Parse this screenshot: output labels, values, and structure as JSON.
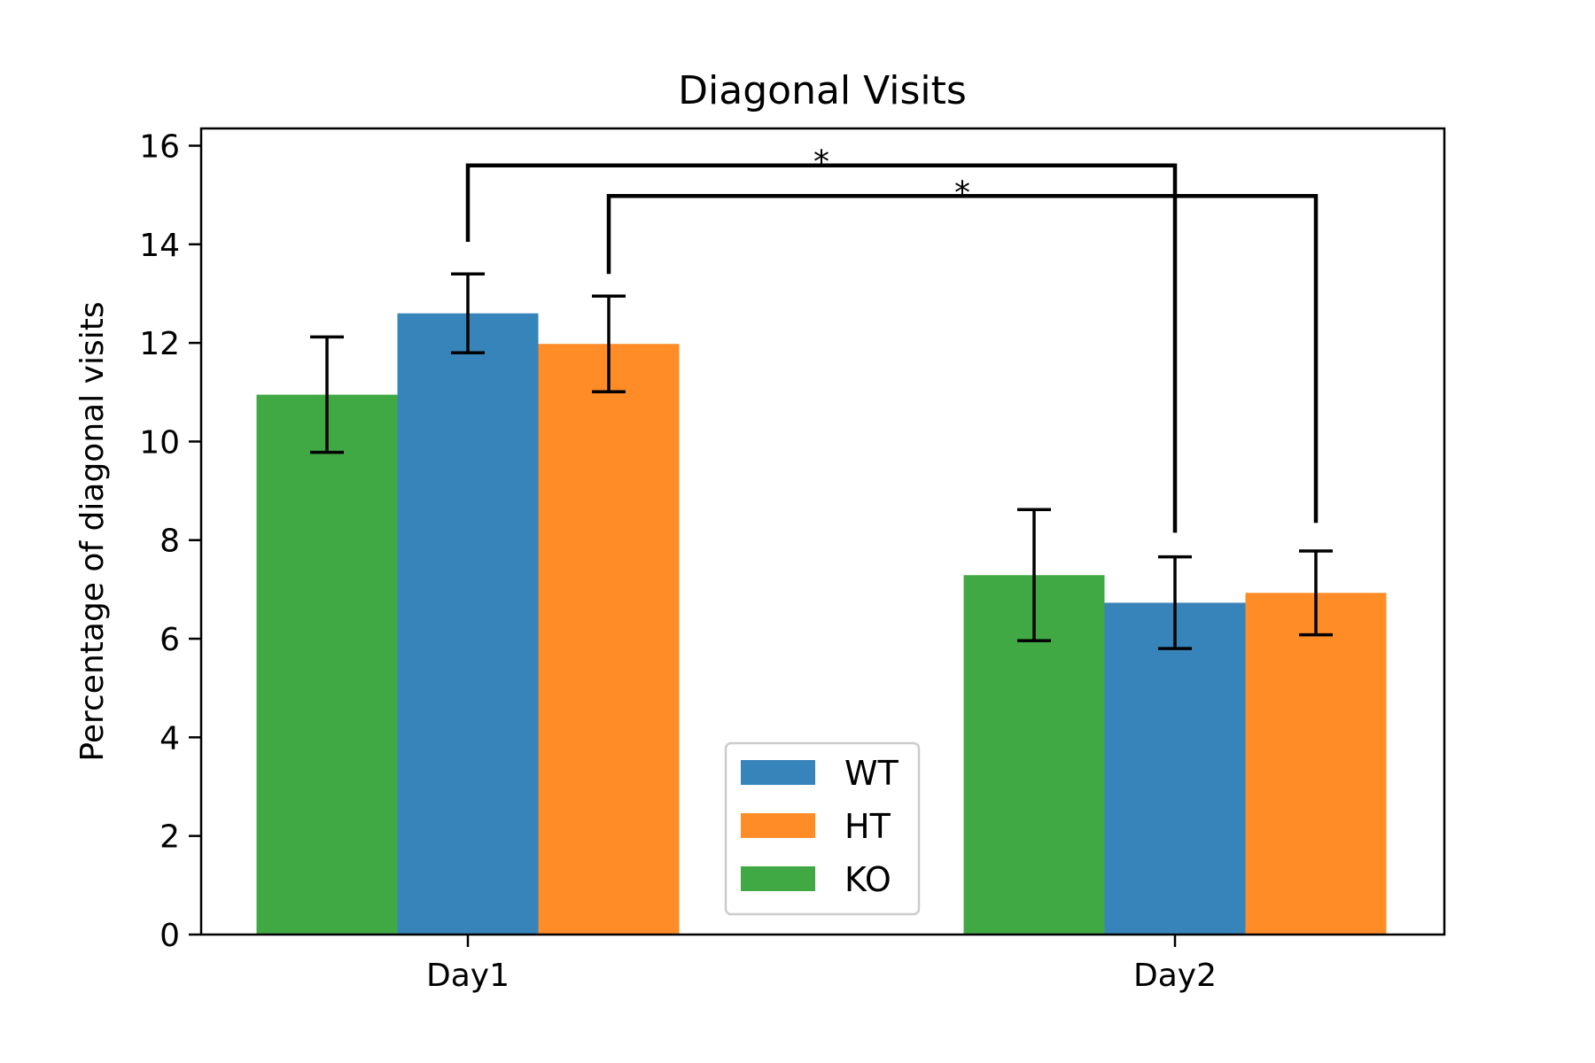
{
  "chart_data": {
    "type": "bar",
    "title": "Diagonal Visits",
    "xlabel": "",
    "ylabel": "Percentage of diagonal visits",
    "categories": [
      "Day1",
      "Day2"
    ],
    "ylim": [
      0,
      16.35
    ],
    "yticks": [
      0,
      2,
      4,
      6,
      8,
      10,
      12,
      14,
      16
    ],
    "bar_order": [
      "KO",
      "WT",
      "HT"
    ],
    "series": [
      {
        "name": "WT",
        "color": "#3784bb",
        "values": [
          12.6,
          6.73
        ],
        "errors": [
          0.8,
          0.93
        ]
      },
      {
        "name": "HT",
        "color": "#ff8c27",
        "values": [
          11.98,
          6.93
        ],
        "errors": [
          0.97,
          0.85
        ]
      },
      {
        "name": "KO",
        "color": "#41a943",
        "values": [
          10.95,
          7.29
        ],
        "errors": [
          1.17,
          1.33
        ]
      }
    ],
    "legend": {
      "position": "lower center",
      "entries": [
        "WT",
        "HT",
        "KO"
      ]
    },
    "grid": false,
    "significance": [
      {
        "series": "WT",
        "label": "*",
        "from_top": 14.05,
        "to_top": 8.15,
        "bracket_y": 15.6
      },
      {
        "series": "HT",
        "label": "*",
        "from_top": 13.4,
        "to_top": 8.35,
        "bracket_y": 14.98
      }
    ]
  }
}
